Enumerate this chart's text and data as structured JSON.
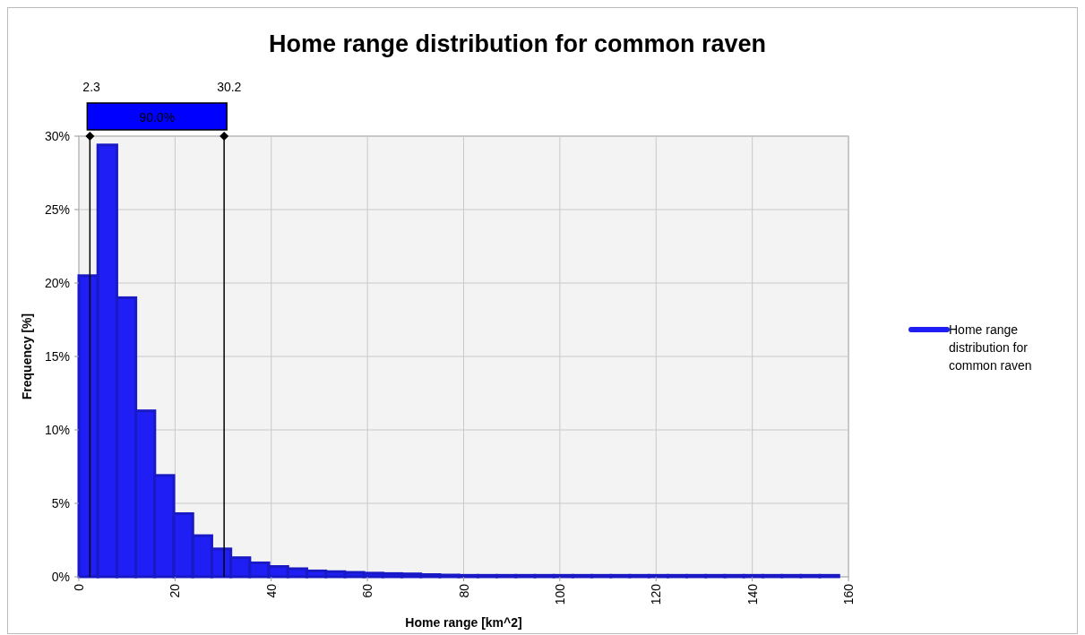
{
  "chart_data": {
    "type": "histogram",
    "title": "Home range distribution for common raven",
    "xlabel": "Home range [km^2]",
    "ylabel": "Frequency [%]",
    "bins": [
      0,
      3.95,
      7.9,
      11.85,
      15.8,
      19.75,
      23.7,
      27.65,
      31.6,
      35.55,
      39.5,
      43.45,
      47.4,
      51.35,
      55.3,
      59.25,
      63.2,
      67.15,
      71.1,
      75.05,
      79,
      82.95,
      86.9,
      90.85,
      94.8,
      98.75,
      102.7,
      106.65,
      110.6,
      114.55,
      118.5,
      122.45,
      126.4,
      130.35,
      134.3,
      138.25,
      142.2,
      146.15,
      150.1,
      154.05,
      158
    ],
    "series": [
      {
        "name": "Home range distribution for common raven",
        "color": "#1f1ff5",
        "values": [
          20.5,
          29.4,
          19.0,
          11.3,
          6.9,
          4.3,
          2.8,
          1.9,
          1.3,
          0.95,
          0.7,
          0.55,
          0.4,
          0.35,
          0.3,
          0.25,
          0.22,
          0.2,
          0.15,
          0.12,
          0.1,
          0.1,
          0.1,
          0.1,
          0.1,
          0.1,
          0.1,
          0.1,
          0.1,
          0.1,
          0.1,
          0.1,
          0.1,
          0.1,
          0.1,
          0.1,
          0.1,
          0.1,
          0.1,
          0.1
        ]
      }
    ],
    "xlim": [
      0,
      160
    ],
    "xticks": [
      0,
      20,
      40,
      60,
      80,
      100,
      120,
      140,
      160
    ],
    "ylim": [
      0,
      30
    ],
    "yticks": [
      {
        "value": 0,
        "label": "0%"
      },
      {
        "value": 5,
        "label": "5%"
      },
      {
        "value": 10,
        "label": "10%"
      },
      {
        "value": 15,
        "label": "15%"
      },
      {
        "value": 20,
        "label": "20%"
      },
      {
        "value": 25,
        "label": "25%"
      },
      {
        "value": 30,
        "label": "30%"
      }
    ],
    "ref_lines": [
      {
        "axis": "x",
        "value": 2.3,
        "label": "2.3",
        "color": "#000000"
      },
      {
        "axis": "x",
        "value": 30.2,
        "label": "30.2",
        "color": "#000000"
      }
    ],
    "annotations": [
      "90.0%"
    ],
    "grid": true,
    "legend": "right"
  }
}
